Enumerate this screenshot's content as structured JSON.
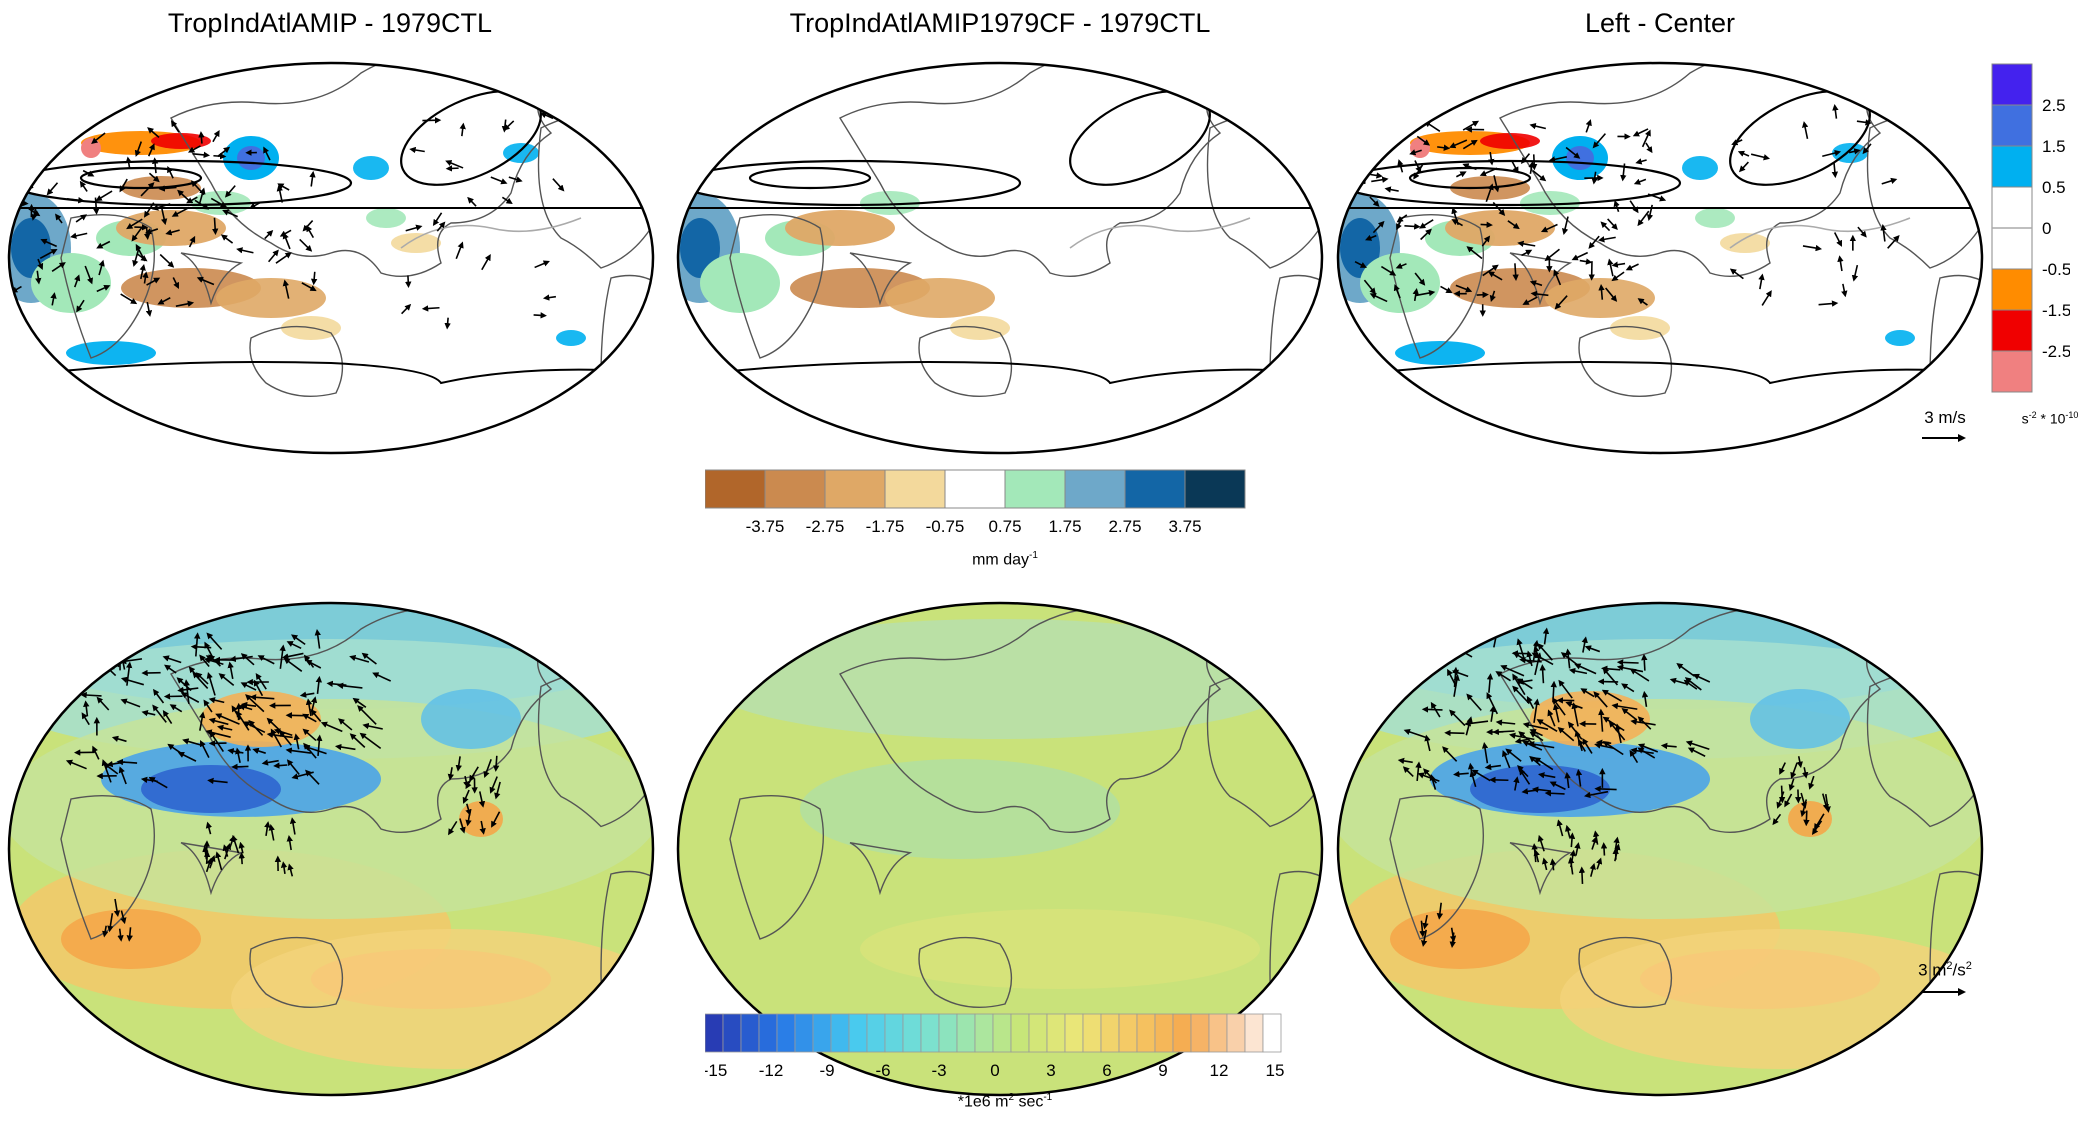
{
  "chart_data": {
    "type": "heatmap",
    "panels": [
      {
        "title": "TropIndAtlAMIP - 1979CTL"
      },
      {
        "title": "TropIndAtlAMIP1979CF - 1979CTL"
      },
      {
        "title": "Left - Center"
      }
    ],
    "precip_colorbar": {
      "labels": [
        "-3.75",
        "-2.75",
        "-1.75",
        "-0.75",
        "0.75",
        "1.75",
        "2.75",
        "3.75"
      ],
      "colors": [
        "#b1662a",
        "#cb8a4f",
        "#dfa866",
        "#f3d99c",
        "#ffffff",
        "#a3e8b9",
        "#6ea8c9",
        "#1366a6",
        "#0a3856"
      ],
      "unit_base": "mm day",
      "unit_exp": "-1"
    },
    "vorticity_colorbar": {
      "labels": [
        "-2.5",
        "-1.5",
        "-0.5",
        "0",
        "0.5",
        "1.5",
        "2.5"
      ],
      "colors": [
        "#f08080",
        "#f00000",
        "#ff8c00",
        "#ffffff",
        "#ffffff",
        "#00b0f0",
        "#4070e0",
        "#4422ee"
      ],
      "unit_base": "s",
      "unit_exp": "-2",
      "unit_mult": " * 10",
      "unit_exp2": "-10"
    },
    "streamfunction_colorbar": {
      "labels": [
        "-15",
        "-12",
        "-9",
        "-6",
        "-3",
        "0",
        "3",
        "6",
        "9",
        "12",
        "15"
      ],
      "unit_pre": "*1e6 m",
      "unit_exp": "2",
      "unit_post": " sec",
      "unit_exp2": "-1"
    },
    "top_vector_ref": {
      "label": "3 m/s"
    },
    "bottom_vector_ref": {
      "label_base": "3 m",
      "exp1": "2",
      "mid": "/s",
      "exp2": "2"
    }
  }
}
